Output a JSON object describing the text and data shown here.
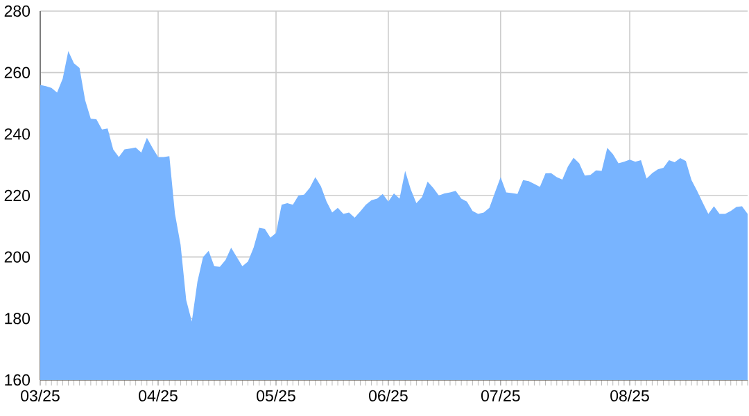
{
  "chart_data": {
    "type": "area",
    "categories": [
      "03/25",
      null,
      null,
      null,
      null,
      null,
      null,
      null,
      null,
      null,
      null,
      null,
      null,
      null,
      null,
      null,
      null,
      null,
      null,
      null,
      null,
      "04/25",
      null,
      null,
      null,
      null,
      null,
      null,
      null,
      null,
      null,
      null,
      null,
      null,
      null,
      null,
      null,
      null,
      null,
      null,
      null,
      null,
      "05/25",
      null,
      null,
      null,
      null,
      null,
      null,
      null,
      null,
      null,
      null,
      null,
      null,
      null,
      null,
      null,
      null,
      null,
      null,
      null,
      "06/25",
      null,
      null,
      null,
      null,
      null,
      null,
      null,
      null,
      null,
      null,
      null,
      null,
      null,
      null,
      null,
      null,
      null,
      null,
      null,
      "07/25",
      null,
      null,
      null,
      null,
      null,
      null,
      null,
      null,
      null,
      null,
      null,
      null,
      null,
      null,
      null,
      null,
      null,
      null,
      null,
      null,
      null,
      null,
      "08/25",
      null,
      null,
      null,
      null,
      null,
      null,
      null,
      null,
      null,
      null,
      null,
      null,
      null,
      null,
      null,
      null,
      null,
      null,
      null,
      null,
      null
    ],
    "values": [
      256,
      255.6,
      255,
      253.5,
      258,
      267,
      263,
      261.5,
      251,
      245,
      244.8,
      241.5,
      241.8,
      235,
      232.5,
      235,
      235.3,
      235.6,
      234,
      238.8,
      235.5,
      232.5,
      232.5,
      232.8,
      214,
      204,
      186,
      179,
      192,
      200,
      202,
      197,
      196.8,
      199,
      203,
      200,
      197,
      198.5,
      203,
      209.5,
      209.2,
      206.3,
      207.8,
      217,
      217.5,
      217,
      220,
      220.3,
      222.5,
      226,
      223,
      218,
      214.5,
      216,
      214,
      214.5,
      212.8,
      214.8,
      217,
      218.5,
      219,
      220.5,
      218,
      220.7,
      219,
      228,
      222,
      217.5,
      219.5,
      224.5,
      222.5,
      220,
      220.7,
      221,
      221.5,
      219,
      218,
      215,
      214,
      214.5,
      216,
      221,
      226,
      221,
      220.8,
      220.5,
      225,
      224.7,
      223.8,
      222.8,
      227.2,
      227.3,
      226,
      225.2,
      229.5,
      232.3,
      230.5,
      226.5,
      226.7,
      228.2,
      228,
      235.5,
      233.5,
      230.5,
      231,
      231.7,
      231,
      231.5,
      225.5,
      227.3,
      228.5,
      229,
      231.5,
      230.8,
      232.2,
      231.2,
      225,
      221.5,
      217.7,
      214,
      216.5,
      214,
      214,
      215,
      216.3,
      216.5,
      214
    ],
    "color": "#78b4ff",
    "ylim": [
      160,
      280
    ],
    "yticks": [
      160,
      180,
      200,
      220,
      240,
      260,
      280
    ],
    "grid": true
  }
}
